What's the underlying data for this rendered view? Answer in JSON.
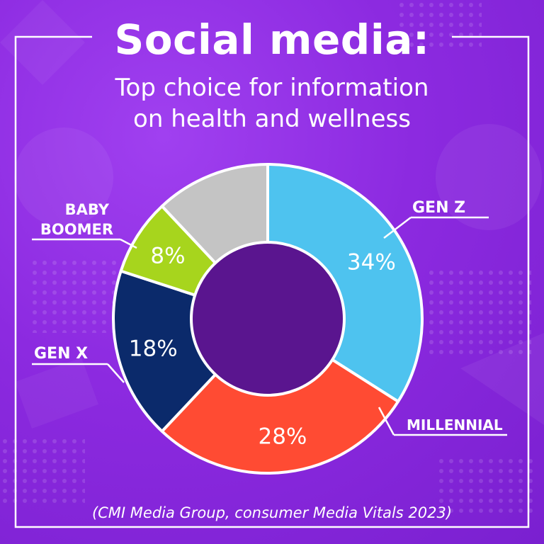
{
  "header": {
    "title": "Social media:",
    "subtitle_line1": "Top choice for information",
    "subtitle_line2": "on health and wellness"
  },
  "source": "(CMI Media Group, consumer Media Vitals 2023)",
  "colors": {
    "background": "#8c2ae0",
    "gen_z": "#4ec3ef",
    "millennial": "#ff4b33",
    "gen_x": "#0b2a6b",
    "baby_boomer": "#a7d51d",
    "other": "#c4c4c4",
    "center": "#5a158f"
  },
  "chart_data": {
    "type": "pie",
    "donut": true,
    "slices": [
      {
        "label": "GEN Z",
        "value": 34,
        "value_label": "34%",
        "color": "#4ec3ef"
      },
      {
        "label": "MILLENNIAL",
        "value": 28,
        "value_label": "28%",
        "color": "#ff4b33"
      },
      {
        "label": "GEN X",
        "value": 18,
        "value_label": "18%",
        "color": "#0b2a6b"
      },
      {
        "label": "BABY BOOMER",
        "value": 8,
        "value_label": "8%",
        "color": "#a7d51d"
      },
      {
        "label": "",
        "value": 12,
        "value_label": "",
        "color": "#c4c4c4"
      }
    ],
    "callout_lines": {
      "gen_z": [
        "GEN Z"
      ],
      "millennial": [
        "MILLENNIAL"
      ],
      "gen_x": [
        "GEN X"
      ],
      "baby_boomer": [
        "BABY",
        "BOOMER"
      ]
    }
  }
}
